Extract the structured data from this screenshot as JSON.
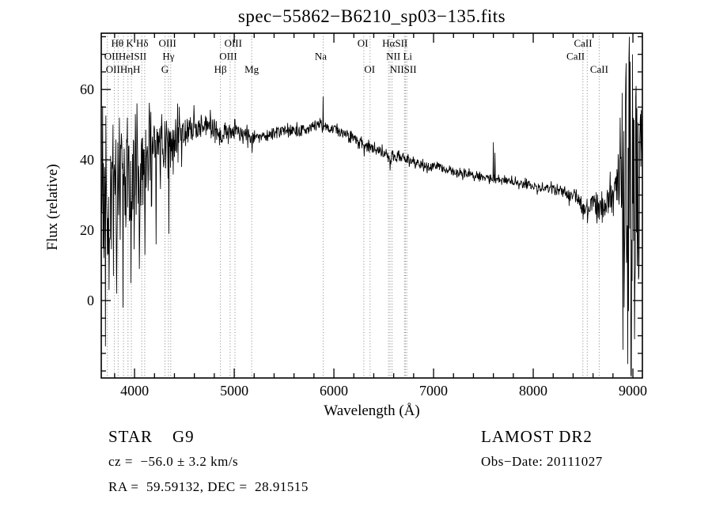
{
  "title": "spec−55862−B6210_sp03−135.fits",
  "footer": {
    "classification": "STAR    G9",
    "survey": "LAMOST DR2",
    "cz": "cz =  −56.0 ± 3.2 km/s",
    "obs_date": "Obs−Date: 20111027",
    "ra_dec": "RA =  59.59132, DEC =  28.91515"
  },
  "chart_data": {
    "type": "line",
    "title": "spec−55862−B6210_sp03−135.fits",
    "xlabel": "Wavelength (Å)",
    "ylabel": "Flux (relative)",
    "xlim": [
      3666,
      9095
    ],
    "ylim": [
      -22,
      76
    ],
    "x_ticks": [
      4000,
      5000,
      6000,
      7000,
      8000,
      9000
    ],
    "y_ticks": [
      0,
      20,
      40,
      60
    ],
    "x_minor_step": 200,
    "y_minor_step": 5,
    "grid": false,
    "line_color": "#000000",
    "background": "#ffffff",
    "series_name": "flux",
    "continuum": [
      [
        3666,
        24
      ],
      [
        3700,
        28
      ],
      [
        3725,
        21
      ],
      [
        3750,
        27
      ],
      [
        3780,
        29
      ],
      [
        3810,
        31
      ],
      [
        3840,
        30
      ],
      [
        3870,
        33
      ],
      [
        3900,
        32
      ],
      [
        3930,
        35
      ],
      [
        3960,
        35
      ],
      [
        3990,
        36
      ],
      [
        4020,
        37
      ],
      [
        4060,
        36
      ],
      [
        4100,
        39
      ],
      [
        4150,
        41
      ],
      [
        4200,
        43
      ],
      [
        4250,
        44
      ],
      [
        4300,
        44
      ],
      [
        4350,
        45
      ],
      [
        4400,
        46
      ],
      [
        4450,
        47
      ],
      [
        4500,
        48
      ],
      [
        4600,
        49
      ],
      [
        4700,
        50
      ],
      [
        4800,
        49
      ],
      [
        4861,
        47
      ],
      [
        4920,
        48
      ],
      [
        5000,
        48
      ],
      [
        5100,
        47
      ],
      [
        5175,
        46
      ],
      [
        5250,
        47
      ],
      [
        5350,
        47
      ],
      [
        5450,
        48
      ],
      [
        5550,
        48
      ],
      [
        5650,
        48
      ],
      [
        5750,
        49
      ],
      [
        5850,
        50
      ],
      [
        5900,
        50
      ],
      [
        5950,
        49
      ],
      [
        6050,
        48
      ],
      [
        6150,
        47
      ],
      [
        6250,
        45
      ],
      [
        6300,
        44
      ],
      [
        6400,
        43
      ],
      [
        6500,
        42
      ],
      [
        6563,
        40
      ],
      [
        6650,
        41
      ],
      [
        6750,
        40
      ],
      [
        6850,
        39
      ],
      [
        6950,
        38
      ],
      [
        7050,
        38
      ],
      [
        7150,
        37
      ],
      [
        7250,
        36
      ],
      [
        7350,
        36
      ],
      [
        7450,
        35
      ],
      [
        7550,
        35
      ],
      [
        7650,
        34
      ],
      [
        7750,
        34
      ],
      [
        7850,
        33
      ],
      [
        7950,
        33
      ],
      [
        8050,
        32
      ],
      [
        8150,
        32
      ],
      [
        8250,
        31
      ],
      [
        8350,
        30
      ],
      [
        8450,
        29
      ],
      [
        8500,
        26
      ],
      [
        8550,
        25
      ],
      [
        8600,
        28
      ],
      [
        8660,
        25
      ],
      [
        8700,
        29
      ],
      [
        8750,
        27
      ],
      [
        8800,
        31
      ],
      [
        8850,
        33
      ],
      [
        8900,
        30
      ],
      [
        8950,
        32
      ],
      [
        9000,
        30
      ],
      [
        9050,
        31
      ],
      [
        9095,
        29
      ]
    ],
    "noise": [
      [
        3666,
        17
      ],
      [
        3750,
        16
      ],
      [
        3850,
        15
      ],
      [
        3950,
        14
      ],
      [
        4050,
        12
      ],
      [
        4150,
        10
      ],
      [
        4250,
        8
      ],
      [
        4350,
        6.5
      ],
      [
        4450,
        5
      ],
      [
        4550,
        4
      ],
      [
        4700,
        3
      ],
      [
        4900,
        2.4
      ],
      [
        5100,
        2
      ],
      [
        5400,
        1.7
      ],
      [
        5700,
        1.5
      ],
      [
        6000,
        1.4
      ],
      [
        6400,
        1.4
      ],
      [
        6800,
        1.2
      ],
      [
        7200,
        1.1
      ],
      [
        7600,
        1.1
      ],
      [
        8000,
        1.2
      ],
      [
        8300,
        1.5
      ],
      [
        8500,
        2
      ],
      [
        8650,
        2.8
      ],
      [
        8750,
        4.5
      ],
      [
        8830,
        7
      ],
      [
        8880,
        14
      ],
      [
        8920,
        26
      ],
      [
        8960,
        38
      ],
      [
        9000,
        36
      ],
      [
        9040,
        30
      ],
      [
        9095,
        22
      ]
    ],
    "spikes": [
      [
        3706,
        -13
      ],
      [
        3745,
        3
      ],
      [
        3782,
        50
      ],
      [
        3818,
        2
      ],
      [
        3846,
        52
      ],
      [
        3882,
        -2
      ],
      [
        3926,
        52
      ],
      [
        3962,
        5
      ],
      [
        4006,
        53
      ],
      [
        4046,
        9
      ],
      [
        4102,
        13
      ],
      [
        4150,
        52
      ],
      [
        4214,
        16
      ],
      [
        4270,
        53
      ],
      [
        4342,
        19
      ],
      [
        4430,
        56
      ],
      [
        4470,
        38
      ],
      [
        5180,
        42
      ],
      [
        5893,
        58
      ],
      [
        6302,
        41
      ],
      [
        6563,
        37
      ],
      [
        7600,
        45
      ],
      [
        7614,
        42
      ],
      [
        8498,
        23
      ],
      [
        8544,
        22
      ],
      [
        8664,
        23
      ],
      [
        8870,
        52
      ],
      [
        8898,
        -14
      ],
      [
        8926,
        63
      ],
      [
        8946,
        -18
      ],
      [
        8962,
        75
      ],
      [
        8978,
        -21
      ],
      [
        8996,
        70
      ],
      [
        9014,
        -11
      ],
      [
        9032,
        61
      ],
      [
        9056,
        6
      ],
      [
        9076,
        53
      ]
    ],
    "spectral_lines": [
      3727,
      3798,
      3835,
      3889,
      3934,
      3968,
      4072,
      4102,
      4305,
      4340,
      4363,
      4861,
      4959,
      5007,
      5175,
      5893,
      6300,
      6363,
      6548,
      6563,
      6583,
      6708,
      6717,
      6731,
      8498,
      8542,
      8662
    ],
    "line_label_rows": [
      [
        {
          "text": "Hθ K Hδ",
          "wl": 3952
        },
        {
          "text": "OIII",
          "wl": 4330
        },
        {
          "text": "OIII",
          "wl": 4990
        },
        {
          "text": "OI",
          "wl": 6290
        },
        {
          "text": "HαSII",
          "wl": 6612
        },
        {
          "text": "CaII",
          "wl": 8500
        }
      ],
      [
        {
          "text": "OIIHeISII",
          "wl": 3908
        },
        {
          "text": "Hγ",
          "wl": 4340
        },
        {
          "text": "OIII",
          "wl": 4940
        },
        {
          "text": "Na",
          "wl": 5868
        },
        {
          "text": "NII Li",
          "wl": 6655
        },
        {
          "text": "CaII",
          "wl": 8425
        }
      ],
      [
        {
          "text": "OIIHηH",
          "wl": 3885
        },
        {
          "text": "G",
          "wl": 4305
        },
        {
          "text": "Hβ",
          "wl": 4861
        },
        {
          "text": "Mg",
          "wl": 5175
        },
        {
          "text": "OI",
          "wl": 6358
        },
        {
          "text": "NIISII",
          "wl": 6695
        },
        {
          "text": "CaII",
          "wl": 8662
        }
      ]
    ]
  }
}
